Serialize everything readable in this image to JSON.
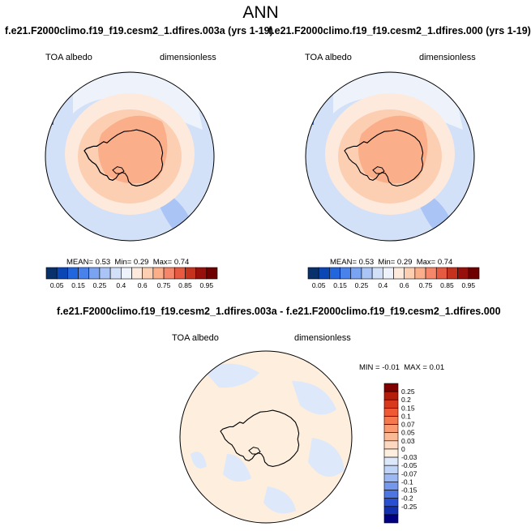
{
  "header": {
    "title": "ANN"
  },
  "panels": [
    {
      "case_title": "f.e21.F2000climo.f19_f19.cesm2_1.dfires.003a (yrs 1-19)",
      "variable": "TOA albedo",
      "units": "dimensionless",
      "mean_label": "MEAN=",
      "mean": "0.53",
      "min_label": "Min=",
      "min": "0.29",
      "max_label": "Max=",
      "max": "0.74"
    },
    {
      "case_title": "f.e21.F2000climo.f19_f19.cesm2_1.dfires.000 (yrs 1-19)",
      "variable": "TOA albedo",
      "units": "dimensionless",
      "mean_label": "MEAN=",
      "mean": "0.53",
      "min_label": "Min=",
      "min": "0.29",
      "max_label": "Max=",
      "max": "0.74"
    }
  ],
  "difference_panel": {
    "case_title": "f.e21.F2000climo.f19_f19.cesm2_1.dfires.003a - f.e21.F2000climo.f19_f19.cesm2_1.dfires.000",
    "variable": "TOA albedo",
    "units": "dimensionless",
    "min_label": "MIN =",
    "min": "-0.01",
    "max_label": "MAX =",
    "max": "0.01"
  },
  "chart_data": [
    {
      "type": "heatmap",
      "projection": "polar-stereographic-south",
      "colorbar": {
        "labels": [
          "0.05",
          "0.15",
          "0.25",
          "0.4",
          "0.6",
          "0.75",
          "0.85",
          "0.95"
        ],
        "colors": [
          "#08306b",
          "#0a46b4",
          "#2266dd",
          "#4a82ec",
          "#7aa3f2",
          "#a9c4f5",
          "#d2e1f8",
          "#eef3fb",
          "#fdeadd",
          "#fccfb3",
          "#fbae8a",
          "#f5866a",
          "#e55a40",
          "#c5321d",
          "#98100b",
          "#6e0000"
        ]
      },
      "stats": {
        "mean": 0.53,
        "min": 0.29,
        "max": 0.74
      }
    },
    {
      "type": "heatmap",
      "projection": "polar-stereographic-south",
      "colorbar": {
        "labels": [
          "0.05",
          "0.15",
          "0.25",
          "0.4",
          "0.6",
          "0.75",
          "0.85",
          "0.95"
        ],
        "colors": [
          "#08306b",
          "#0a46b4",
          "#2266dd",
          "#4a82ec",
          "#7aa3f2",
          "#a9c4f5",
          "#d2e1f8",
          "#eef3fb",
          "#fdeadd",
          "#fccfb3",
          "#fbae8a",
          "#f5866a",
          "#e55a40",
          "#c5321d",
          "#98100b",
          "#6e0000"
        ]
      },
      "stats": {
        "mean": 0.53,
        "min": 0.29,
        "max": 0.74
      }
    },
    {
      "type": "heatmap",
      "projection": "polar-stereographic-south",
      "colorbar": {
        "labels": [
          "0.25",
          "0.2",
          "0.15",
          "0.1",
          "0.07",
          "0.05",
          "0.03",
          "0",
          "-0.03",
          "-0.05",
          "-0.07",
          "-0.1",
          "-0.15",
          "-0.2",
          "-0.25"
        ],
        "colors": [
          "#800000",
          "#b41c0c",
          "#d8381c",
          "#ef5a34",
          "#f5784f",
          "#f99a70",
          "#fbba96",
          "#fdd8c0",
          "#fdeede",
          "#dde8fa",
          "#c0d4f7",
          "#9cb8f2",
          "#7597ec",
          "#4d76e2",
          "#2850d0",
          "#1230b0",
          "#000080"
        ]
      },
      "stats": {
        "min": -0.01,
        "max": 0.01
      }
    }
  ]
}
